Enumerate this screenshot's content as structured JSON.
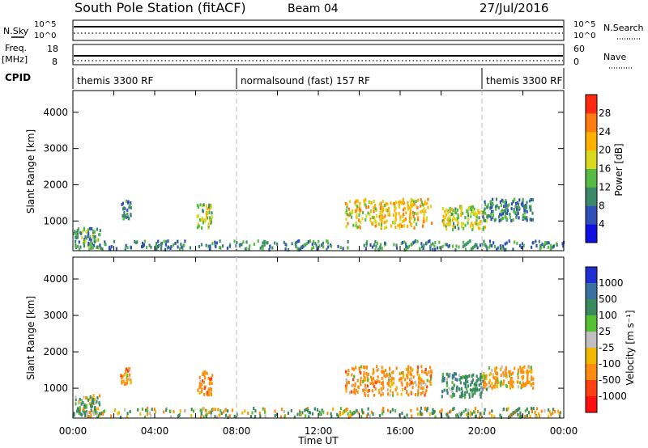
{
  "header": {
    "station": "South Pole Station (fitACF)",
    "beam": "Beam 04",
    "date": "27/Jul/2016"
  },
  "chart_data": [
    {
      "type": "line",
      "panel": "noise",
      "left_label": "N.Sky",
      "right_label": "N.Search",
      "left_ticks": [
        "10^5",
        "10^0"
      ],
      "right_ticks": [
        "10^5",
        "10^0"
      ]
    },
    {
      "type": "line",
      "panel": "frequency",
      "left_label_line1": "Freq.",
      "left_label_line2": "[MHz]",
      "right_label": "Nave",
      "left_ticks": [
        "18",
        "8"
      ],
      "right_ticks": [
        "60",
        "0"
      ]
    },
    {
      "type": "table",
      "panel": "cpid",
      "label": "CPID",
      "segments": [
        {
          "name": "themis 3300 RF",
          "start_h": 0,
          "end_h": 8
        },
        {
          "name": "normalsound (fast) 157 RF",
          "start_h": 8,
          "end_h": 20
        },
        {
          "name": "themis 3300 RF",
          "start_h": 20,
          "end_h": 24
        }
      ]
    },
    {
      "type": "heatmap",
      "panel": "power",
      "ylabel": "Slant Range [km]",
      "yticks": [
        "1000",
        "2000",
        "3000",
        "4000"
      ],
      "ylim": [
        180,
        4600
      ],
      "xlim": [
        0,
        24
      ],
      "colorbar_label": "Power [dB]",
      "colorbar_ticks": [
        "4",
        "8",
        "12",
        "16",
        "20",
        "24",
        "28"
      ],
      "colorbar_colors": [
        "#1010e0",
        "#3050b8",
        "#3a8a6a",
        "#55bb44",
        "#d8d820",
        "#ffb000",
        "#ff7a10",
        "#ff2a10"
      ],
      "echo_regions": [
        {
          "t0": 0.0,
          "t1": 1.3,
          "r0": 250,
          "r1": 800,
          "value": 12
        },
        {
          "t0": 2.3,
          "t1": 2.8,
          "r0": 1050,
          "r1": 1550,
          "value": 9
        },
        {
          "t0": 6.0,
          "t1": 6.8,
          "r0": 800,
          "r1": 1450,
          "value": 16
        },
        {
          "t0": 13.3,
          "t1": 17.5,
          "r0": 800,
          "r1": 1600,
          "value": 20
        },
        {
          "t0": 18.0,
          "t1": 20.2,
          "r0": 750,
          "r1": 1400,
          "value": 17
        },
        {
          "t0": 20.0,
          "t1": 22.5,
          "r0": 1000,
          "r1": 1600,
          "value": 10
        },
        {
          "t0": 0.0,
          "t1": 24.0,
          "r0": 200,
          "r1": 450,
          "value": 10
        }
      ]
    },
    {
      "type": "heatmap",
      "panel": "velocity",
      "ylabel": "Slant Range [km]",
      "yticks": [
        "1000",
        "2000",
        "3000",
        "4000"
      ],
      "ylim": [
        180,
        4600
      ],
      "xlim": [
        0,
        24
      ],
      "xlabel": "Time UT",
      "xticks": [
        "00:00",
        "04:00",
        "08:00",
        "12:00",
        "16:00",
        "20:00",
        "00:00"
      ],
      "colorbar_label": "Velocity [m s⁻¹]",
      "colorbar_ticks": [
        "1000",
        "500",
        "100",
        "25",
        "-25",
        "-100",
        "-500",
        "-1000"
      ],
      "colorbar_colors": [
        "#2030d0",
        "#3a70a0",
        "#3a8a60",
        "#55c030",
        "#c0c0c0",
        "#f0b800",
        "#ff8c10",
        "#ff4010",
        "#ff1010"
      ],
      "echo_regions": [
        {
          "t0": 0.0,
          "t1": 1.3,
          "r0": 250,
          "r1": 800,
          "value": 150
        },
        {
          "t0": 2.3,
          "t1": 2.8,
          "r0": 1050,
          "r1": 1550,
          "value": -250
        },
        {
          "t0": 6.0,
          "t1": 6.8,
          "r0": 800,
          "r1": 1450,
          "value": -300
        },
        {
          "t0": 13.3,
          "t1": 17.5,
          "r0": 800,
          "r1": 1600,
          "value": -250
        },
        {
          "t0": 18.0,
          "t1": 20.2,
          "r0": 750,
          "r1": 1400,
          "value": 300
        },
        {
          "t0": 20.0,
          "t1": 22.5,
          "r0": 1000,
          "r1": 1600,
          "value": -200
        },
        {
          "t0": 0.0,
          "t1": 24.0,
          "r0": 200,
          "r1": 450,
          "value": 50
        }
      ]
    }
  ]
}
